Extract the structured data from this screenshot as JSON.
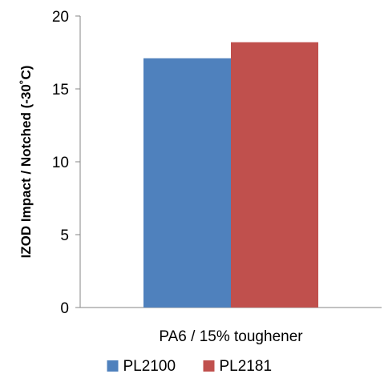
{
  "chart_data": {
    "type": "bar",
    "title": "",
    "xlabel": "",
    "ylabel": "IZOD Impact / Notched (-30˚C)",
    "categories": [
      "PA6 / 15% toughener"
    ],
    "series": [
      {
        "name": "PL2100",
        "values": [
          17.1
        ],
        "color": "#4F81BD"
      },
      {
        "name": "PL2181",
        "values": [
          18.2
        ],
        "color": "#C0504D"
      }
    ],
    "ylim": [
      0,
      20
    ],
    "yticks": [
      0,
      5,
      10,
      15,
      20
    ],
    "ytick_labels": [
      "0",
      "5",
      "10",
      "15",
      "20"
    ],
    "grid": false,
    "legend": "bottom"
  }
}
